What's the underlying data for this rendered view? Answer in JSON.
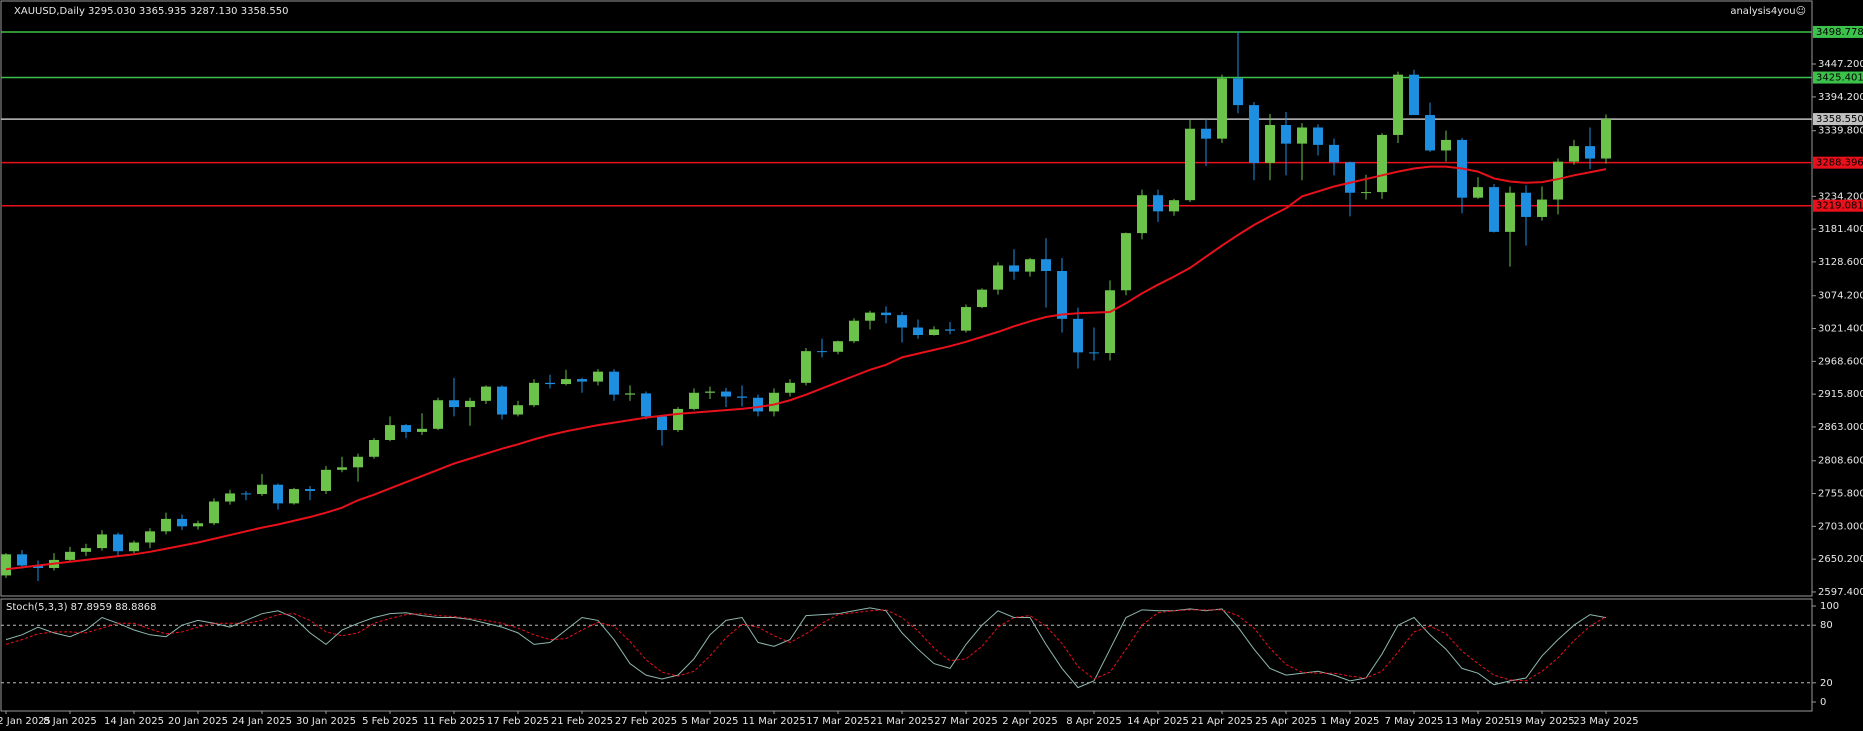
{
  "chart_data": {
    "type": "candlestick",
    "title": "XAUUSD,Daily  3295.030 3365.935 3287.130 3358.550",
    "watermark": "analysis4you☺",
    "bull_color": "#6cc24a",
    "bear_color": "#1e8fe0",
    "categories": [
      "2 Jan 2025",
      null,
      null,
      null,
      "8 Jan 2025",
      null,
      null,
      null,
      "14 Jan 2025",
      null,
      null,
      null,
      "20 Jan 2025",
      null,
      null,
      null,
      "24 Jan 2025",
      null,
      null,
      null,
      "30 Jan 2025",
      null,
      null,
      null,
      "5 Feb 2025",
      null,
      null,
      null,
      "11 Feb 2025",
      null,
      null,
      null,
      "17 Feb 2025",
      null,
      null,
      null,
      "21 Feb 2025",
      null,
      null,
      null,
      "27 Feb 2025",
      null,
      null,
      null,
      "5 Mar 2025",
      null,
      null,
      null,
      "11 Mar 2025",
      null,
      null,
      null,
      "17 Mar 2025",
      null,
      null,
      null,
      "21 Mar 2025",
      null,
      null,
      null,
      "27 Mar 2025",
      null,
      null,
      null,
      "2 Apr 2025",
      null,
      null,
      null,
      "8 Apr 2025",
      null,
      null,
      null,
      "14 Apr 2025",
      null,
      null,
      null,
      "21 Apr 2025",
      null,
      null,
      null,
      "25 Apr 2025",
      null,
      null,
      null,
      "1 May 2025",
      null,
      null,
      null,
      "7 May 2025",
      null,
      null,
      null,
      "13 May 2025",
      null,
      null,
      null,
      "19 May 2025",
      null,
      null,
      null,
      "23 May 2025"
    ],
    "open": [
      2624,
      2658,
      2640,
      2636,
      2649,
      2662,
      2668,
      2690,
      2663,
      2677,
      2695,
      2715,
      2703,
      2708,
      2743,
      2756,
      2755,
      2770,
      2740,
      2763,
      2760,
      2794,
      2798,
      2815,
      2842,
      2866,
      2855,
      2860,
      2906,
      2895,
      2905,
      2928,
      2883,
      2898,
      2934,
      2932,
      2940,
      2936,
      2952,
      2915,
      2917,
      2880,
      2858,
      2892,
      2918,
      2920,
      2912,
      2910,
      2888,
      2918,
      2934,
      2985,
      2984,
      3001,
      3034,
      3047,
      3043,
      3023,
      3011,
      3020,
      3018,
      3056,
      3084,
      3123,
      3113,
      3133,
      3114,
      3037,
      2983,
      2982,
      3083,
      3175,
      3236,
      3210,
      3228,
      3343,
      3327,
      3424,
      3381,
      3288,
      3349,
      3319,
      3345,
      3317,
      3289,
      3240,
      3241,
      3333,
      3430,
      3365,
      3308,
      3325,
      3232,
      3249,
      3177,
      3240,
      3201,
      3229,
      3290,
      3315,
      3295.03
    ],
    "high": [
      2660,
      2665,
      2648,
      2660,
      2670,
      2675,
      2697,
      2693,
      2680,
      2700,
      2725,
      2722,
      2712,
      2748,
      2762,
      2760,
      2787,
      2772,
      2765,
      2768,
      2800,
      2815,
      2820,
      2845,
      2880,
      2868,
      2885,
      2910,
      2942,
      2910,
      2930,
      2930,
      2905,
      2940,
      2947,
      2955,
      2942,
      2956,
      2956,
      2930,
      2920,
      2882,
      2895,
      2925,
      2928,
      2926,
      2930,
      2915,
      2925,
      2940,
      2990,
      3005,
      3002,
      3038,
      3050,
      3057,
      3048,
      3036,
      3025,
      3032,
      3060,
      3086,
      3128,
      3149,
      3135,
      3167,
      3135,
      3055,
      3023,
      3099,
      3176,
      3245,
      3245,
      3230,
      3357,
      3358,
      3430,
      3500,
      3386,
      3367,
      3370,
      3352,
      3350,
      3327,
      3290,
      3269,
      3336,
      3435,
      3438,
      3385,
      3340,
      3328,
      3265,
      3254,
      3250,
      3252,
      3250,
      3295,
      3325,
      3345,
      3365.935
    ],
    "low": [
      2620,
      2635,
      2615,
      2632,
      2645,
      2655,
      2664,
      2656,
      2660,
      2668,
      2690,
      2697,
      2698,
      2705,
      2738,
      2745,
      2752,
      2730,
      2738,
      2745,
      2755,
      2790,
      2775,
      2812,
      2840,
      2845,
      2850,
      2858,
      2880,
      2865,
      2900,
      2875,
      2880,
      2895,
      2925,
      2930,
      2918,
      2930,
      2905,
      2905,
      2875,
      2833,
      2855,
      2890,
      2908,
      2895,
      2896,
      2880,
      2880,
      2912,
      2930,
      2975,
      2980,
      2998,
      3020,
      3030,
      2999,
      3005,
      3010,
      3012,
      3015,
      3054,
      3076,
      3100,
      3105,
      3055,
      3015,
      2957,
      2970,
      2970,
      3075,
      3165,
      3193,
      3203,
      3225,
      3283,
      3320,
      3368,
      3260,
      3260,
      3268,
      3260,
      3300,
      3268,
      3202,
      3229,
      3230,
      3320,
      3366,
      3306,
      3290,
      3207,
      3230,
      3176,
      3121,
      3155,
      3195,
      3205,
      3285,
      3278,
      3287.13
    ],
    "close": [
      2658,
      2640,
      2636,
      2649,
      2662,
      2668,
      2690,
      2663,
      2677,
      2695,
      2715,
      2703,
      2708,
      2743,
      2756,
      2755,
      2770,
      2740,
      2763,
      2760,
      2794,
      2798,
      2815,
      2842,
      2866,
      2855,
      2860,
      2906,
      2895,
      2905,
      2928,
      2883,
      2898,
      2934,
      2932,
      2940,
      2936,
      2952,
      2915,
      2917,
      2880,
      2858,
      2892,
      2918,
      2920,
      2912,
      2910,
      2888,
      2918,
      2934,
      2985,
      2984,
      3001,
      3034,
      3047,
      3043,
      3023,
      3011,
      3020,
      3018,
      3056,
      3084,
      3123,
      3113,
      3133,
      3114,
      3037,
      2983,
      2982,
      3083,
      3175,
      3236,
      3210,
      3228,
      3343,
      3327,
      3424,
      3381,
      3288,
      3349,
      3319,
      3345,
      3317,
      3289,
      3240,
      3241,
      3333,
      3430,
      3365,
      3308,
      3325,
      3232,
      3249,
      3177,
      3240,
      3201,
      3229,
      3290,
      3315,
      3295,
      3358.55
    ],
    "ma": {
      "color": "#e8111b",
      "values": [
        2634,
        2637,
        2640,
        2643,
        2646,
        2649,
        2652,
        2655,
        2658,
        2662,
        2667,
        2672,
        2677,
        2683,
        2689,
        2695,
        2701,
        2706,
        2712,
        2718,
        2725,
        2733,
        2745,
        2754,
        2764,
        2774,
        2784,
        2794,
        2804,
        2812,
        2820,
        2828,
        2835,
        2843,
        2850,
        2856,
        2861,
        2866,
        2870,
        2874,
        2878,
        2881,
        2884,
        2886,
        2888,
        2890,
        2892,
        2895,
        2899,
        2906,
        2915,
        2925,
        2935,
        2945,
        2955,
        2963,
        2975,
        2981,
        2987,
        2993,
        3000,
        3008,
        3016,
        3025,
        3033,
        3040,
        3044,
        3046,
        3047,
        3048,
        3062,
        3078,
        3092,
        3105,
        3119,
        3137,
        3155,
        3172,
        3188,
        3202,
        3215,
        3234,
        3242,
        3250,
        3256,
        3262,
        3268,
        3274,
        3279,
        3282,
        3282,
        3279,
        3274,
        3263,
        3258,
        3256,
        3257,
        3262,
        3268,
        3273,
        3278
      ]
    },
    "ylim": [
      2590.9,
      3550.2
    ],
    "yticks": [
      {
        "value": 3447.2,
        "label": "3447.200"
      },
      {
        "value": 3394.2,
        "label": "3394.200"
      },
      {
        "value": 3339.8,
        "label": "3339.800"
      },
      {
        "value": 3234.2,
        "label": "3234.200"
      },
      {
        "value": 3181.4,
        "label": "3181.400"
      },
      {
        "value": 3128.6,
        "label": "3128.600"
      },
      {
        "value": 3074.2,
        "label": "3074.200"
      },
      {
        "value": 3021.4,
        "label": "3021.400"
      },
      {
        "value": 2968.6,
        "label": "2968.600"
      },
      {
        "value": 2915.8,
        "label": "2915.800"
      },
      {
        "value": 2863,
        "label": "2863.000"
      },
      {
        "value": 2808.6,
        "label": "2808.600"
      },
      {
        "value": 2755.8,
        "label": "2755.800"
      },
      {
        "value": 2703,
        "label": "2703.000"
      },
      {
        "value": 2650.2,
        "label": "2650.200"
      },
      {
        "value": 2597.4,
        "label": "2597.400"
      }
    ],
    "levels": [
      {
        "value": 3498.778,
        "label": "3498.778",
        "color": "#3cc24a"
      },
      {
        "value": 3425.401,
        "label": "3425.401",
        "color": "#3cc24a"
      },
      {
        "value": 3358.55,
        "label": "3358.550",
        "color": "#c0c0c0"
      },
      {
        "value": 3288.396,
        "label": "3288.396",
        "color": "#e8111b"
      },
      {
        "value": 3219.081,
        "label": "3219.081",
        "color": "#e8111b"
      }
    ],
    "indicator": {
      "title": "Stoch(5,3,3) 87.8959 88.8868",
      "k_color": "#8fb8b0",
      "d_color": "#e8111b",
      "ylim": [
        0,
        100
      ],
      "yticks": [
        0,
        20,
        80,
        100
      ],
      "levels": [
        20,
        80
      ],
      "k": [
        65,
        70,
        78,
        72,
        68,
        75,
        88,
        82,
        75,
        70,
        68,
        80,
        85,
        82,
        78,
        85,
        92,
        95,
        88,
        72,
        60,
        75,
        82,
        88,
        92,
        93,
        90,
        88,
        88,
        86,
        82,
        78,
        72,
        60,
        62,
        75,
        88,
        85,
        65,
        40,
        28,
        24,
        28,
        45,
        70,
        85,
        88,
        62,
        58,
        65,
        90,
        91,
        92,
        95,
        98,
        95,
        72,
        55,
        40,
        35,
        60,
        80,
        95,
        88,
        88,
        60,
        35,
        15,
        22,
        55,
        88,
        96,
        95,
        95,
        97,
        95,
        97,
        78,
        55,
        35,
        28,
        30,
        32,
        28,
        22,
        25,
        50,
        80,
        88,
        70,
        55,
        35,
        30,
        18,
        22,
        25,
        48,
        65,
        80,
        91,
        87.8959
      ],
      "d": [
        60,
        65,
        71,
        73,
        73,
        72,
        77,
        82,
        82,
        76,
        71,
        73,
        78,
        82,
        82,
        82,
        85,
        91,
        92,
        85,
        73,
        69,
        72,
        82,
        87,
        91,
        92,
        90,
        89,
        87,
        85,
        82,
        77,
        70,
        65,
        66,
        75,
        83,
        79,
        63,
        44,
        31,
        27,
        32,
        48,
        67,
        81,
        78,
        69,
        62,
        71,
        82,
        91,
        93,
        95,
        96,
        88,
        74,
        56,
        43,
        45,
        58,
        78,
        88,
        90,
        79,
        61,
        37,
        24,
        31,
        55,
        80,
        93,
        95,
        96,
        96,
        96,
        90,
        77,
        56,
        39,
        31,
        30,
        30,
        27,
        25,
        32,
        52,
        73,
        79,
        71,
        53,
        40,
        28,
        23,
        22,
        32,
        46,
        64,
        79,
        88.8868
      ]
    }
  }
}
